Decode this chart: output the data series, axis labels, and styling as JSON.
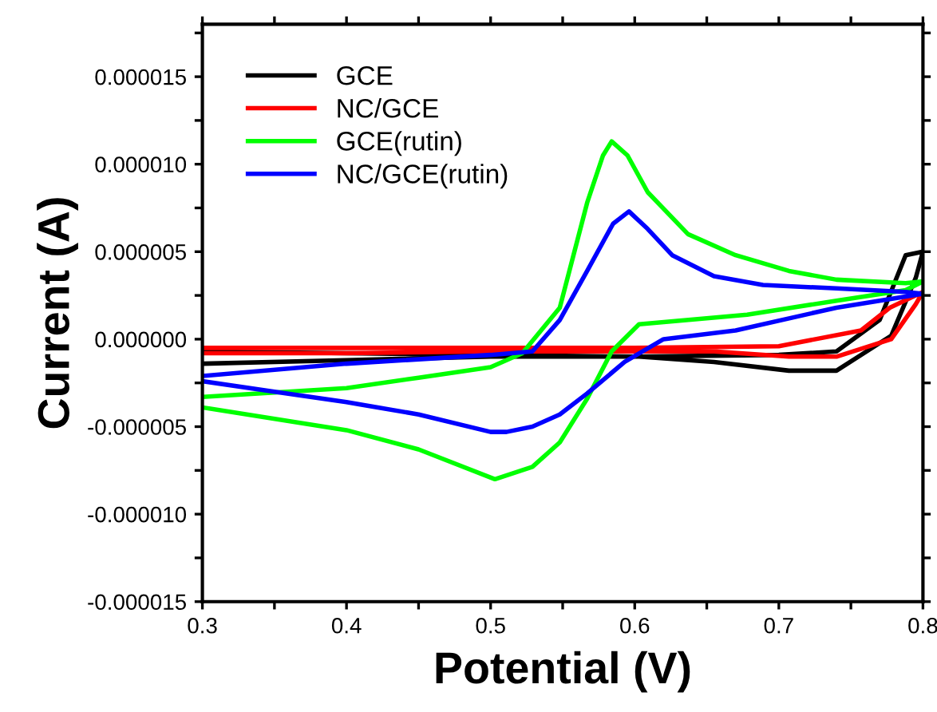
{
  "chart_data": {
    "type": "line",
    "xlabel": "Potential (V)",
    "ylabel": "Current (A)",
    "legend": "top left",
    "grid": false,
    "line_style": "solid",
    "marker": "none",
    "xlim": [
      0.3,
      0.8
    ],
    "ylim": [
      -1.5e-05,
      1.8e-05
    ],
    "xticks": [
      0.3,
      {
        "value": 0.35,
        "label": null
      },
      0.4,
      {
        "value": 0.45,
        "label": null
      },
      0.5,
      {
        "value": 0.55,
        "label": null
      },
      0.6,
      {
        "value": 0.65,
        "label": null
      },
      0.7,
      {
        "value": 0.75,
        "label": null
      },
      0.8
    ],
    "yticks": [
      {
        "value": -1.5e-05,
        "label": "-0.000015"
      },
      {
        "value": -1.25e-05,
        "label": null
      },
      {
        "value": -1e-05,
        "label": "-0.000010"
      },
      {
        "value": -7.5e-06,
        "label": null
      },
      {
        "value": -5e-06,
        "label": "-0.000005"
      },
      {
        "value": -2.5e-06,
        "label": null
      },
      {
        "value": 0,
        "label": "0.000000"
      },
      {
        "value": 2.5e-06,
        "label": null
      },
      {
        "value": 5e-06,
        "label": "0.000005"
      },
      {
        "value": 7.5e-06,
        "label": null
      },
      {
        "value": 1e-05,
        "label": "0.000010"
      },
      {
        "value": 1.25e-05,
        "label": null
      },
      {
        "value": 1.5e-05,
        "label": "0.000015"
      },
      {
        "value": 1.75e-05,
        "label": null
      }
    ],
    "series": [
      {
        "name": "GCE",
        "color": "#000000",
        "x": [
          0.3,
          0.4,
          0.5,
          0.6,
          0.7,
          0.74,
          0.77,
          0.788,
          0.8,
          0.795,
          0.778,
          0.74,
          0.707,
          0.655,
          0.603,
          0.5,
          0.4,
          0.3
        ],
        "values": [
          -1.4e-06,
          -1.2e-06,
          -1e-06,
          -1e-06,
          -9e-07,
          -7e-07,
          1.1e-06,
          4.8e-06,
          5e-06,
          3.5e-06,
          2e-07,
          -1.8e-06,
          -1.8e-06,
          -1.3e-06,
          -1e-06,
          -9e-07,
          -8e-07,
          -7e-07
        ]
      },
      {
        "name": "NC/GCE",
        "color": "#ff0000",
        "x": [
          0.3,
          0.4,
          0.5,
          0.6,
          0.7,
          0.757,
          0.777,
          0.8,
          0.795,
          0.778,
          0.74,
          0.707,
          0.655,
          0.5,
          0.4,
          0.3
        ],
        "values": [
          -5e-07,
          -5e-07,
          -5e-07,
          -5e-07,
          -4e-07,
          5e-07,
          1.8e-06,
          2.7e-06,
          2e-06,
          0.0,
          -1e-06,
          -1e-06,
          -7e-07,
          -7e-07,
          -8e-07,
          -8e-07
        ]
      },
      {
        "name": "GCE(rutin)",
        "color": "#00ff00",
        "x": [
          0.3,
          0.4,
          0.45,
          0.5,
          0.522,
          0.548,
          0.567,
          0.578,
          0.584,
          0.595,
          0.609,
          0.637,
          0.67,
          0.707,
          0.74,
          0.788,
          0.8,
          0.788,
          0.74,
          0.678,
          0.603,
          0.584,
          0.567,
          0.548,
          0.529,
          0.503,
          0.45,
          0.4,
          0.3
        ],
        "values": [
          -3.3e-06,
          -2.8e-06,
          -2.2e-06,
          -1.6e-06,
          -8e-07,
          1.8e-06,
          7.8e-06,
          1.05e-05,
          1.13e-05,
          1.05e-05,
          8.4e-06,
          6e-06,
          4.8e-06,
          3.9e-06,
          3.4e-06,
          3.2e-06,
          3.3e-06,
          2.8e-06,
          2.2e-06,
          1.4e-06,
          8.5e-07,
          -7e-07,
          -3.4e-06,
          -5.9e-06,
          -7.3e-06,
          -8e-06,
          -6.3e-06,
          -5.2e-06,
          -3.9e-06
        ]
      },
      {
        "name": "NC/GCE(rutin)",
        "color": "#0000ff",
        "x": [
          0.3,
          0.4,
          0.5,
          0.529,
          0.548,
          0.567,
          0.585,
          0.596,
          0.609,
          0.626,
          0.655,
          0.689,
          0.74,
          0.788,
          0.8,
          0.74,
          0.67,
          0.62,
          0.593,
          0.567,
          0.548,
          0.529,
          0.511,
          0.5,
          0.45,
          0.4,
          0.35,
          0.3
        ],
        "values": [
          -2.1e-06,
          -1.4e-06,
          -9e-07,
          -7e-07,
          1.1e-06,
          3.9e-06,
          6.6e-06,
          7.3e-06,
          6.3e-06,
          4.8e-06,
          3.6e-06,
          3.1e-06,
          2.9e-06,
          2.7e-06,
          2.6e-06,
          1.8e-06,
          5e-07,
          0.0,
          -1.3e-06,
          -3.1e-06,
          -4.3e-06,
          -5e-06,
          -5.3e-06,
          -5.3e-06,
          -4.3e-06,
          -3.6e-06,
          -3e-06,
          -2.4e-06
        ]
      }
    ]
  }
}
